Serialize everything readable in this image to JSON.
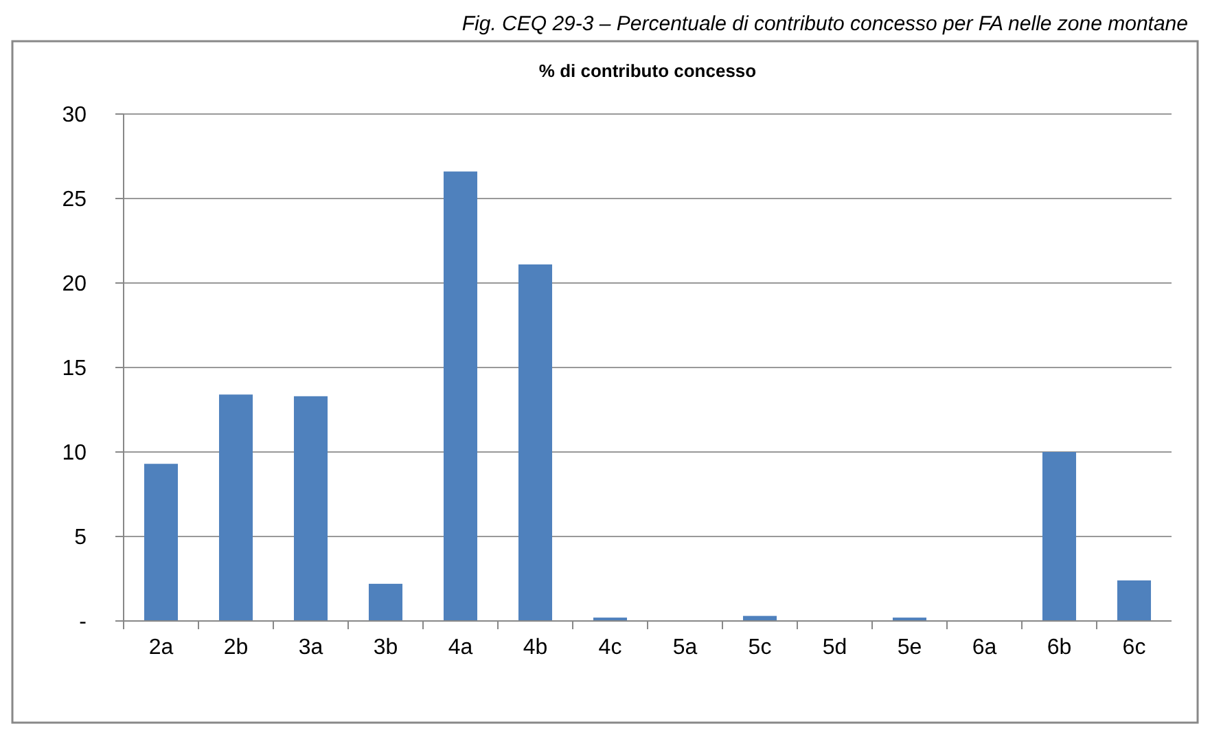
{
  "chart_data": {
    "type": "bar",
    "title": "% di contributo concesso",
    "annotations": [
      "Fig. CEQ 29-3 – Percentuale di contributo concesso per FA nelle zone montane"
    ],
    "categories": [
      "2a",
      "2b",
      "3a",
      "3b",
      "4a",
      "4b",
      "4c",
      "5a",
      "5c",
      "5d",
      "5e",
      "6a",
      "6b",
      "6c"
    ],
    "values": [
      9.3,
      13.4,
      13.3,
      2.2,
      26.6,
      21.1,
      0.2,
      0,
      0.3,
      0,
      0.2,
      0,
      10.0,
      2.4
    ],
    "color": "#4f81bd",
    "ylim": [
      0,
      30
    ],
    "yticks": [
      {
        "value": 0,
        "label": "-"
      },
      5,
      10,
      15,
      20,
      25,
      30
    ],
    "grid": "y"
  }
}
